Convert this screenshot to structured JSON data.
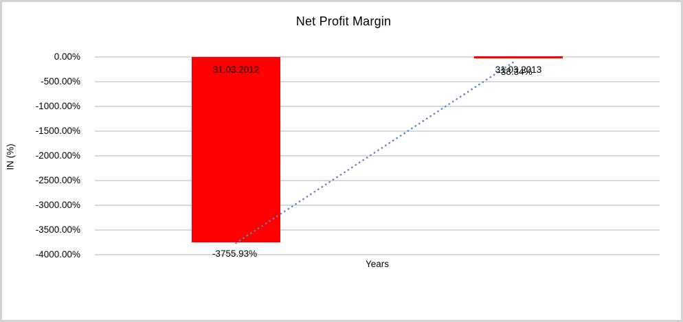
{
  "frame": {
    "background": "#ffffff",
    "border_color": "#d2d2d2"
  },
  "chart_data": {
    "type": "bar",
    "title": "Net Profit Margin",
    "xlabel": "Years",
    "ylabel": "IN (%)",
    "categories": [
      "31.03.2012",
      "31.03.2013"
    ],
    "series": [
      {
        "name": "Net Profit Margin",
        "values": [
          -3755.93,
          -38.34
        ]
      }
    ],
    "value_labels": [
      "-3755.93%",
      "-38.34%"
    ],
    "ylim": [
      -4000,
      0
    ],
    "ytick_step": 500,
    "ytick_labels": [
      "0.00%",
      "-500.00%",
      "-1000.00%",
      "-1500.00%",
      "-2000.00%",
      "-2500.00%",
      "-3000.00%",
      "-3500.00%",
      "-4000.00%"
    ],
    "grid": true,
    "legend": "none",
    "bar_color": "#ff0000",
    "gridline_color": "#d9d9d9",
    "label_color": "#000000",
    "trendline": {
      "type": "linear",
      "style": "dotted",
      "color": "#5585c7"
    }
  }
}
